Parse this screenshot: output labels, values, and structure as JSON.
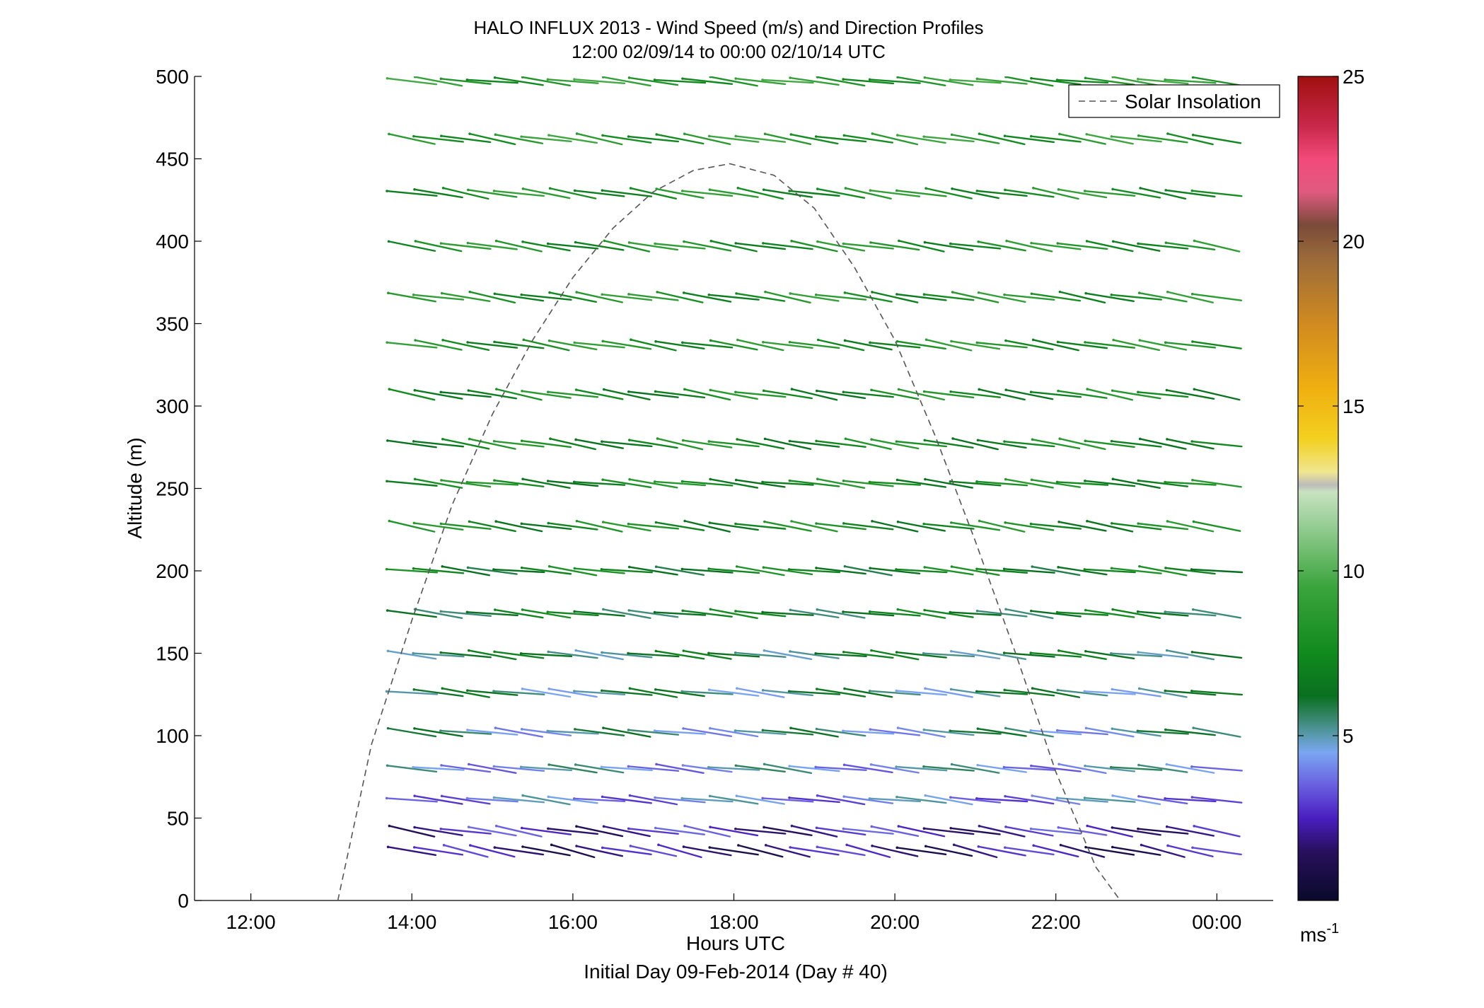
{
  "chart_data": {
    "type": "quiver",
    "title": "HALO INFLUX 2013 - Wind Speed (m/s) and Direction Profiles",
    "subtitle": "12:00 02/09/14 to 00:00 02/10/14  UTC",
    "xlabel": "Hours UTC",
    "xlabel2": "Initial Day 09-Feb-2014 (Day # 40)",
    "ylabel": "Altitude (m)",
    "xlim": [
      11.3,
      24.7
    ],
    "ylim": [
      0,
      500
    ],
    "x_ticks": [
      12,
      14,
      16,
      18,
      20,
      22,
      24
    ],
    "x_tick_labels": [
      "12:00",
      "14:00",
      "16:00",
      "18:00",
      "20:00",
      "22:00",
      "00:00"
    ],
    "y_ticks": [
      0,
      50,
      100,
      150,
      200,
      250,
      300,
      350,
      400,
      450,
      500
    ],
    "y_tick_labels": [
      "0",
      "50",
      "100",
      "150",
      "200",
      "250",
      "300",
      "350",
      "400",
      "450",
      "500"
    ],
    "grid": false,
    "legend": {
      "position": "top-right",
      "entries": [
        {
          "name": "Solar Insolation",
          "style": "dashed",
          "color": "#555555"
        }
      ]
    },
    "colorbar": {
      "min": 0,
      "max": 25,
      "ticks": [
        5,
        10,
        15,
        20,
        25
      ],
      "tick_labels": [
        "5",
        "10",
        "15",
        "20",
        "25"
      ],
      "unit_label": "ms",
      "unit_exponent": "-1",
      "stops": [
        {
          "v": 0,
          "c": "#0a0a2a"
        },
        {
          "v": 1.5,
          "c": "#28105e"
        },
        {
          "v": 2.5,
          "c": "#4a1ec0"
        },
        {
          "v": 3.5,
          "c": "#6a60e0"
        },
        {
          "v": 4.5,
          "c": "#7aa6f2"
        },
        {
          "v": 5.0,
          "c": "#5a9ab0"
        },
        {
          "v": 5.5,
          "c": "#3a8870"
        },
        {
          "v": 6.2,
          "c": "#0a7020"
        },
        {
          "v": 7.5,
          "c": "#118a1e"
        },
        {
          "v": 9.5,
          "c": "#3aa43c"
        },
        {
          "v": 11.5,
          "c": "#9cd09a"
        },
        {
          "v": 12.4,
          "c": "#c8e2c0"
        },
        {
          "v": 12.6,
          "c": "#bbbbbb"
        },
        {
          "v": 13.0,
          "c": "#f0e690"
        },
        {
          "v": 14.0,
          "c": "#f2d020"
        },
        {
          "v": 15.5,
          "c": "#f0b010"
        },
        {
          "v": 17.5,
          "c": "#d08a20"
        },
        {
          "v": 19.5,
          "c": "#9a6a3a"
        },
        {
          "v": 20.5,
          "c": "#7a4a3a"
        },
        {
          "v": 21.5,
          "c": "#e05a80"
        },
        {
          "v": 22.5,
          "c": "#f24a7a"
        },
        {
          "v": 23.5,
          "c": "#c8284a"
        },
        {
          "v": 25,
          "c": "#a01010"
        }
      ]
    },
    "solar_insolation": {
      "x": [
        13.08,
        13.5,
        14.0,
        14.5,
        15.0,
        15.5,
        16.0,
        16.5,
        17.0,
        17.5,
        17.95,
        18.5,
        19.0,
        19.5,
        20.0,
        20.5,
        21.0,
        21.5,
        22.0,
        22.5,
        22.8
      ],
      "y": [
        0,
        95,
        170,
        240,
        295,
        340,
        378,
        408,
        430,
        443,
        447,
        440,
        420,
        384,
        340,
        282,
        218,
        150,
        78,
        20,
        0
      ]
    },
    "wind_vectors": {
      "times": [
        14.0,
        14.33,
        14.67,
        15.0,
        15.33,
        15.67,
        16.0,
        16.33,
        16.67,
        17.0,
        17.33,
        17.67,
        18.0,
        18.33,
        18.67,
        19.0,
        19.33,
        19.67,
        20.0,
        20.33,
        20.67,
        21.0,
        21.33,
        21.67,
        22.0,
        22.33,
        22.67,
        23.0,
        23.33,
        23.67,
        24.0
      ],
      "levels": [
        {
          "alt": 497,
          "speed": 8.5,
          "dir": 285
        },
        {
          "alt": 462,
          "speed": 8.5,
          "dir": 290
        },
        {
          "alt": 429,
          "speed": 8.0,
          "dir": 290
        },
        {
          "alt": 397,
          "speed": 8.0,
          "dir": 290
        },
        {
          "alt": 366,
          "speed": 8.0,
          "dir": 290
        },
        {
          "alt": 337,
          "speed": 8.0,
          "dir": 290
        },
        {
          "alt": 307,
          "speed": 7.5,
          "dir": 290
        },
        {
          "alt": 277,
          "speed": 7.5,
          "dir": 290
        },
        {
          "alt": 253,
          "speed": 7.5,
          "dir": 285
        },
        {
          "alt": 227,
          "speed": 7.5,
          "dir": 290
        },
        {
          "alt": 200,
          "speed": 7.0,
          "dir": 285
        },
        {
          "alt": 174,
          "speed": 6.5,
          "dir": 285
        },
        {
          "alt": 149,
          "speed": 6.0,
          "dir": 285
        },
        {
          "alt": 126,
          "speed": 5.5,
          "dir": 285
        },
        {
          "alt": 102,
          "speed": 5.0,
          "dir": 285
        },
        {
          "alt": 80,
          "speed": 4.5,
          "dir": 285
        },
        {
          "alt": 61,
          "speed": 4.0,
          "dir": 285
        },
        {
          "alt": 42,
          "speed": 2.5,
          "dir": 290
        },
        {
          "alt": 30,
          "speed": 2.0,
          "dir": 295
        }
      ]
    }
  }
}
